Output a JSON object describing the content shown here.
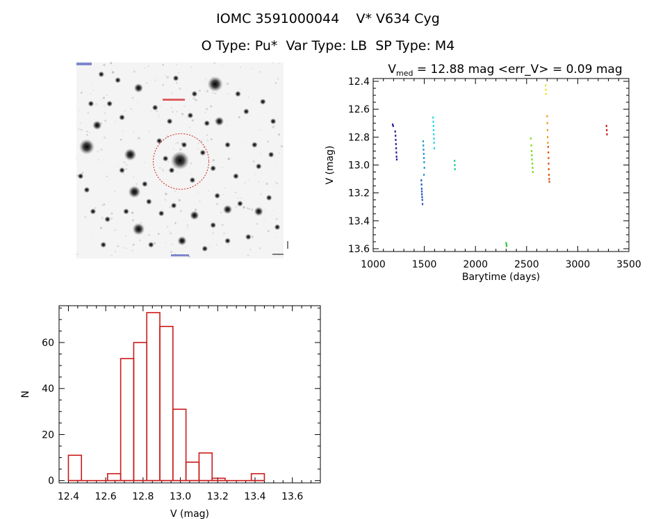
{
  "header": {
    "title_line1": "IOMC 3591000044    V* V634 Cyg",
    "title_line2": "O Type: Pu*  Var Type: LB  SP Type: M4"
  },
  "chart_data": [
    {
      "type": "scatter",
      "title": "V_med = 12.88 mag <err_V> = 0.09 mag",
      "title_parts": {
        "v": "V",
        "sub": "med",
        "rest": " = 12.88 mag <err_V> = 0.09 mag"
      },
      "xlabel": "Barytime (days)",
      "ylabel": "V (mag)",
      "xlim": [
        1000,
        3500
      ],
      "ylim": [
        13.62,
        12.38
      ],
      "y_inverted": true,
      "xticks": [
        1000,
        1500,
        2000,
        2500,
        3000,
        3500
      ],
      "xtick_labels": [
        "1000",
        "1500",
        "2000",
        "2500",
        "3000",
        "3500"
      ],
      "yticks": [
        12.4,
        12.6,
        12.8,
        13.0,
        13.2,
        13.4,
        13.6
      ],
      "ytick_labels": [
        "12.4",
        "12.6",
        "12.8",
        "13.0",
        "13.2",
        "13.4",
        "13.6"
      ],
      "series": [
        {
          "color": "#3b1e9a",
          "points": [
            [
              1190,
              12.71
            ],
            [
              1195,
              12.72
            ],
            [
              1215,
              12.76
            ],
            [
              1218,
              12.79
            ],
            [
              1220,
              12.82
            ],
            [
              1222,
              12.85
            ],
            [
              1224,
              12.88
            ],
            [
              1226,
              12.91
            ],
            [
              1228,
              12.94
            ],
            [
              1230,
              12.96
            ]
          ]
        },
        {
          "color": "#2a5cc8",
          "points": [
            [
              1470,
              13.11
            ],
            [
              1472,
              13.14
            ],
            [
              1474,
              13.17
            ],
            [
              1475,
              13.19
            ],
            [
              1476,
              13.21
            ],
            [
              1478,
              13.23
            ],
            [
              1480,
              13.25
            ],
            [
              1482,
              13.28
            ]
          ]
        },
        {
          "color": "#2a9ad6",
          "points": [
            [
              1488,
              12.83
            ],
            [
              1490,
              12.86
            ],
            [
              1492,
              12.89
            ],
            [
              1494,
              12.92
            ],
            [
              1496,
              12.95
            ],
            [
              1498,
              12.98
            ],
            [
              1500,
              13.02
            ],
            [
              1496,
              13.07
            ]
          ]
        },
        {
          "color": "#25d8e0",
          "points": [
            [
              1585,
              12.66
            ],
            [
              1587,
              12.69
            ],
            [
              1589,
              12.72
            ],
            [
              1590,
              12.75
            ],
            [
              1592,
              12.78
            ],
            [
              1594,
              12.81
            ],
            [
              1595,
              12.84
            ],
            [
              1597,
              12.88
            ]
          ]
        },
        {
          "color": "#22d48f",
          "points": [
            [
              1795,
              12.97
            ],
            [
              1797,
              13.0
            ],
            [
              1799,
              13.03
            ]
          ]
        },
        {
          "color": "#35c840",
          "points": [
            [
              2300,
              13.56
            ],
            [
              2302,
              13.57
            ],
            [
              2304,
              13.58
            ]
          ]
        },
        {
          "color": "#7ee020",
          "points": [
            [
              2540,
              12.81
            ],
            [
              2545,
              12.86
            ],
            [
              2548,
              12.9
            ],
            [
              2550,
              12.93
            ],
            [
              2552,
              12.96
            ],
            [
              2555,
              12.99
            ],
            [
              2558,
              13.02
            ],
            [
              2560,
              13.05
            ]
          ]
        },
        {
          "color": "#e4e43a",
          "points": [
            [
              2685,
              12.43
            ],
            [
              2687,
              12.46
            ],
            [
              2688,
              12.49
            ]
          ]
        },
        {
          "color": "#f0a020",
          "points": [
            [
              2700,
              12.65
            ],
            [
              2702,
              12.7
            ],
            [
              2704,
              12.75
            ],
            [
              2705,
              12.8
            ],
            [
              2707,
              12.84
            ]
          ]
        },
        {
          "color": "#e05a18",
          "points": [
            [
              2710,
              12.87
            ],
            [
              2712,
              12.91
            ],
            [
              2714,
              12.95
            ],
            [
              2715,
              12.99
            ],
            [
              2716,
              13.03
            ],
            [
              2718,
              13.07
            ],
            [
              2720,
              13.1
            ],
            [
              2722,
              13.12
            ]
          ]
        },
        {
          "color": "#c81e1e",
          "points": [
            [
              3280,
              12.72
            ],
            [
              3283,
              12.75
            ],
            [
              3285,
              12.78
            ]
          ]
        }
      ]
    },
    {
      "type": "bar",
      "xlabel": "V (mag)",
      "ylabel": "N",
      "xlim": [
        12.35,
        13.75
      ],
      "ylim": [
        -1,
        76
      ],
      "xticks": [
        12.4,
        12.6,
        12.8,
        13.0,
        13.2,
        13.4,
        13.6
      ],
      "xtick_labels": [
        "12.4",
        "12.6",
        "12.8",
        "13.0",
        "13.2",
        "13.4",
        "13.6"
      ],
      "yticks": [
        0,
        20,
        40,
        60
      ],
      "ytick_labels": [
        "0",
        "20",
        "40",
        "60"
      ],
      "bar_color": "#cc1a1a",
      "bins": [
        {
          "start": 12.4,
          "end": 12.47,
          "count": 11
        },
        {
          "start": 12.47,
          "end": 12.54,
          "count": 0
        },
        {
          "start": 12.54,
          "end": 12.61,
          "count": 0
        },
        {
          "start": 12.61,
          "end": 12.68,
          "count": 3
        },
        {
          "start": 12.68,
          "end": 12.75,
          "count": 53
        },
        {
          "start": 12.75,
          "end": 12.82,
          "count": 60
        },
        {
          "start": 12.82,
          "end": 12.89,
          "count": 73
        },
        {
          "start": 12.89,
          "end": 12.96,
          "count": 67
        },
        {
          "start": 12.96,
          "end": 13.03,
          "count": 31
        },
        {
          "start": 13.03,
          "end": 13.1,
          "count": 8
        },
        {
          "start": 13.1,
          "end": 13.17,
          "count": 12
        },
        {
          "start": 13.17,
          "end": 13.24,
          "count": 1
        },
        {
          "start": 13.24,
          "end": 13.31,
          "count": 0
        },
        {
          "start": 13.31,
          "end": 13.38,
          "count": 0
        },
        {
          "start": 13.38,
          "end": 13.45,
          "count": 3
        }
      ]
    }
  ],
  "sky_image": {
    "description": "inverted grayscale star field with red circle marking target",
    "circle_color": "#d42020",
    "stars": [
      [
        0.3,
        0.13,
        3
      ],
      [
        0.67,
        0.11,
        5
      ],
      [
        0.05,
        0.43,
        5
      ],
      [
        0.1,
        0.32,
        3
      ],
      [
        0.26,
        0.47,
        4
      ],
      [
        0.5,
        0.5,
        6
      ],
      [
        0.63,
        0.31,
        2
      ],
      [
        0.61,
        0.46,
        2
      ],
      [
        0.66,
        0.54,
        2
      ],
      [
        0.52,
        0.42,
        2
      ],
      [
        0.43,
        0.49,
        2
      ],
      [
        0.4,
        0.4,
        2
      ],
      [
        0.46,
        0.55,
        2
      ],
      [
        0.56,
        0.6,
        2
      ],
      [
        0.69,
        0.3,
        3
      ],
      [
        0.82,
        0.25,
        2
      ],
      [
        0.9,
        0.2,
        2
      ],
      [
        0.95,
        0.3,
        2
      ],
      [
        0.88,
        0.53,
        2
      ],
      [
        0.73,
        0.42,
        2
      ],
      [
        0.78,
        0.16,
        2
      ],
      [
        0.16,
        0.21,
        2
      ],
      [
        0.22,
        0.28,
        2
      ],
      [
        0.12,
        0.06,
        2
      ],
      [
        0.38,
        0.23,
        2
      ],
      [
        0.57,
        0.16,
        2
      ],
      [
        0.28,
        0.66,
        4
      ],
      [
        0.33,
        0.62,
        2
      ],
      [
        0.24,
        0.76,
        2
      ],
      [
        0.15,
        0.8,
        2
      ],
      [
        0.3,
        0.85,
        4
      ],
      [
        0.41,
        0.77,
        2
      ],
      [
        0.47,
        0.73,
        2
      ],
      [
        0.57,
        0.78,
        3
      ],
      [
        0.66,
        0.83,
        2
      ],
      [
        0.73,
        0.91,
        2
      ],
      [
        0.83,
        0.89,
        2
      ],
      [
        0.88,
        0.76,
        3
      ],
      [
        0.93,
        0.69,
        2
      ],
      [
        0.73,
        0.75,
        3
      ],
      [
        0.79,
        0.72,
        2
      ],
      [
        0.97,
        0.84,
        2
      ],
      [
        0.05,
        0.65,
        2
      ],
      [
        0.08,
        0.76,
        2
      ],
      [
        0.02,
        0.58,
        2
      ],
      [
        0.13,
        0.93,
        2
      ],
      [
        0.36,
        0.93,
        2
      ],
      [
        0.51,
        0.91,
        3
      ],
      [
        0.62,
        0.95,
        2
      ],
      [
        0.45,
        0.3,
        2
      ],
      [
        0.22,
        0.55,
        2
      ],
      [
        0.07,
        0.21,
        2
      ],
      [
        0.2,
        0.09,
        2
      ],
      [
        0.48,
        0.08,
        2
      ],
      [
        0.86,
        0.42,
        2
      ],
      [
        0.77,
        0.58,
        2
      ],
      [
        0.94,
        0.47,
        2
      ],
      [
        0.68,
        0.68,
        2
      ],
      [
        0.55,
        0.27,
        2
      ],
      [
        0.35,
        0.71,
        2
      ]
    ]
  }
}
